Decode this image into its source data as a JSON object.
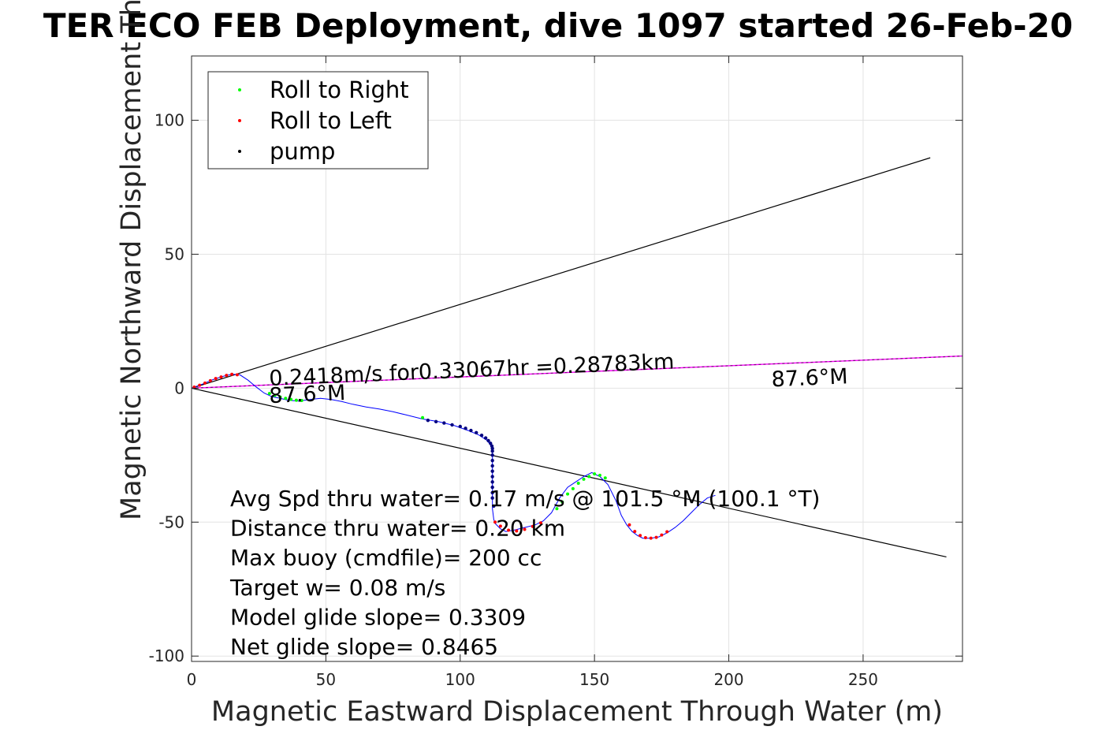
{
  "chart_data": {
    "type": "scatter",
    "title": "TER ECO FEB Deployment, dive 1097 started 26-Feb-20",
    "xlabel": "Magnetic Eastward Displacement Through Water (m)",
    "ylabel": "Magnetic Northward Displacement Through Water(",
    "xlim": [
      0,
      287
    ],
    "ylim": [
      -102,
      124
    ],
    "xticks": [
      0,
      50,
      100,
      150,
      200,
      250
    ],
    "yticks": [
      -100,
      -50,
      0,
      50,
      100
    ],
    "xtick_labels": [
      "0",
      "50",
      "100",
      "150",
      "200",
      "250"
    ],
    "ytick_labels": [
      "-100",
      "-50",
      "0",
      "50",
      "100"
    ],
    "grid": true,
    "legend_position": "top-left",
    "legend": [
      {
        "label": "Roll to Right",
        "color": "#00ff00"
      },
      {
        "label": "Roll to Left",
        "color": "#ff0000"
      },
      {
        "label": "pump",
        "color": "#000000"
      }
    ],
    "colors": {
      "track": "#0000ff",
      "heading_line": "#ff00ff",
      "cone_lines": "#000000",
      "roll_right": "#00ff00",
      "roll_left": "#ff0000",
      "pump": "#000080"
    },
    "track": {
      "x": [
        0,
        4,
        8,
        12,
        15,
        18,
        21,
        24,
        27,
        30,
        33,
        36,
        40,
        44,
        48,
        52,
        56,
        60,
        65,
        70,
        75,
        80,
        86,
        92,
        98,
        103,
        107,
        110,
        111.5,
        112,
        112,
        112,
        112,
        112.5,
        113,
        114,
        115,
        117,
        120,
        124,
        128,
        131,
        134,
        137,
        140,
        143,
        146,
        149,
        152,
        155,
        158,
        160,
        162,
        164,
        166,
        168,
        171,
        174,
        177,
        180,
        183,
        186,
        189,
        192,
        195
      ],
      "y": [
        0,
        1.5,
        3.2,
        4.5,
        5.2,
        5,
        3,
        0.5,
        -1.8,
        -3.2,
        -3.8,
        -4.5,
        -4.8,
        -4.2,
        -3.8,
        -4.2,
        -5,
        -6,
        -7,
        -7.8,
        -8.8,
        -10,
        -11.5,
        -12.5,
        -14,
        -15.8,
        -17.5,
        -19.5,
        -21.5,
        -24,
        -30,
        -38,
        -45,
        -49,
        -50.5,
        -51.5,
        -52.5,
        -53.5,
        -53,
        -52,
        -51,
        -49.5,
        -46.5,
        -41,
        -37,
        -35,
        -33,
        -31.5,
        -33,
        -36,
        -42,
        -47.5,
        -51,
        -53.5,
        -55,
        -56,
        -56,
        -55.5,
        -54,
        -52,
        -49.5,
        -46.5,
        -43.5,
        -41,
        -40
      ]
    },
    "roll_right": {
      "x": [
        29,
        31,
        33,
        35,
        37,
        39,
        41,
        86,
        136,
        138,
        140,
        142,
        144,
        146,
        148,
        150,
        152,
        154
      ],
      "y": [
        -2,
        -2.7,
        -3.3,
        -3.8,
        -4.2,
        -4.5,
        -4.6,
        -11,
        -45,
        -42.5,
        -39.5,
        -37.5,
        -35.5,
        -34,
        -33,
        -32,
        -32.5,
        -33.5
      ]
    },
    "roll_left": {
      "x": [
        1,
        3,
        5,
        7,
        9,
        11,
        13,
        15,
        17,
        113,
        115,
        118,
        121,
        124,
        127,
        130,
        163,
        165,
        167,
        169,
        171,
        173,
        175,
        177
      ],
      "y": [
        0.4,
        1.1,
        1.9,
        2.8,
        3.6,
        4.2,
        4.8,
        5.2,
        5,
        -50,
        -51.5,
        -53,
        -53.3,
        -52.7,
        -51.6,
        -50.3,
        -51,
        -53.5,
        -55,
        -55.8,
        -56,
        -55.7,
        -54.8,
        -53.6
      ]
    },
    "pump": {
      "x": [
        88,
        91,
        94,
        97,
        100,
        102,
        104,
        106,
        108,
        109.5,
        110.5,
        111.3,
        111.8,
        112,
        112,
        112,
        112,
        112,
        112,
        112,
        112,
        112,
        112,
        112,
        112.5
      ],
      "y": [
        -12,
        -12.5,
        -13,
        -13.7,
        -14.3,
        -15,
        -15.8,
        -16.6,
        -17.6,
        -18.6,
        -19.6,
        -20.6,
        -21.6,
        -22.5,
        -23.5,
        -25,
        -27,
        -29,
        -31,
        -33,
        -35,
        -37,
        -39,
        -41,
        -44
      ]
    },
    "lines": {
      "heading": {
        "x": [
          0,
          287
        ],
        "y": [
          0,
          12
        ]
      },
      "upper": {
        "x": [
          0,
          275
        ],
        "y": [
          0,
          86
        ]
      },
      "lower": {
        "x": [
          0,
          281
        ],
        "y": [
          0,
          -63
        ]
      }
    },
    "annotations": {
      "speed_label": {
        "text": "0.2418m/s for0.33067hr =0.28783km",
        "x": 29,
        "y": 1,
        "angle": 2.4
      },
      "heading_label_left": {
        "text": "87.6°M",
        "x": 29,
        "y": -5.5,
        "angle": 2.4
      },
      "heading_label_right": {
        "text": "87.6°M",
        "x": 216,
        "y": 0.6,
        "angle": 2.4
      }
    },
    "stats": [
      "Avg Spd thru water=  0.17 m/s @ 101.5 °M (100.1 °T)",
      "Distance thru water=  0.20 km",
      "Max buoy (cmdfile)= 200 cc",
      "Target w= 0.08 m/s",
      "Model glide slope= 0.3309",
      "Net glide slope= 0.8465"
    ]
  }
}
